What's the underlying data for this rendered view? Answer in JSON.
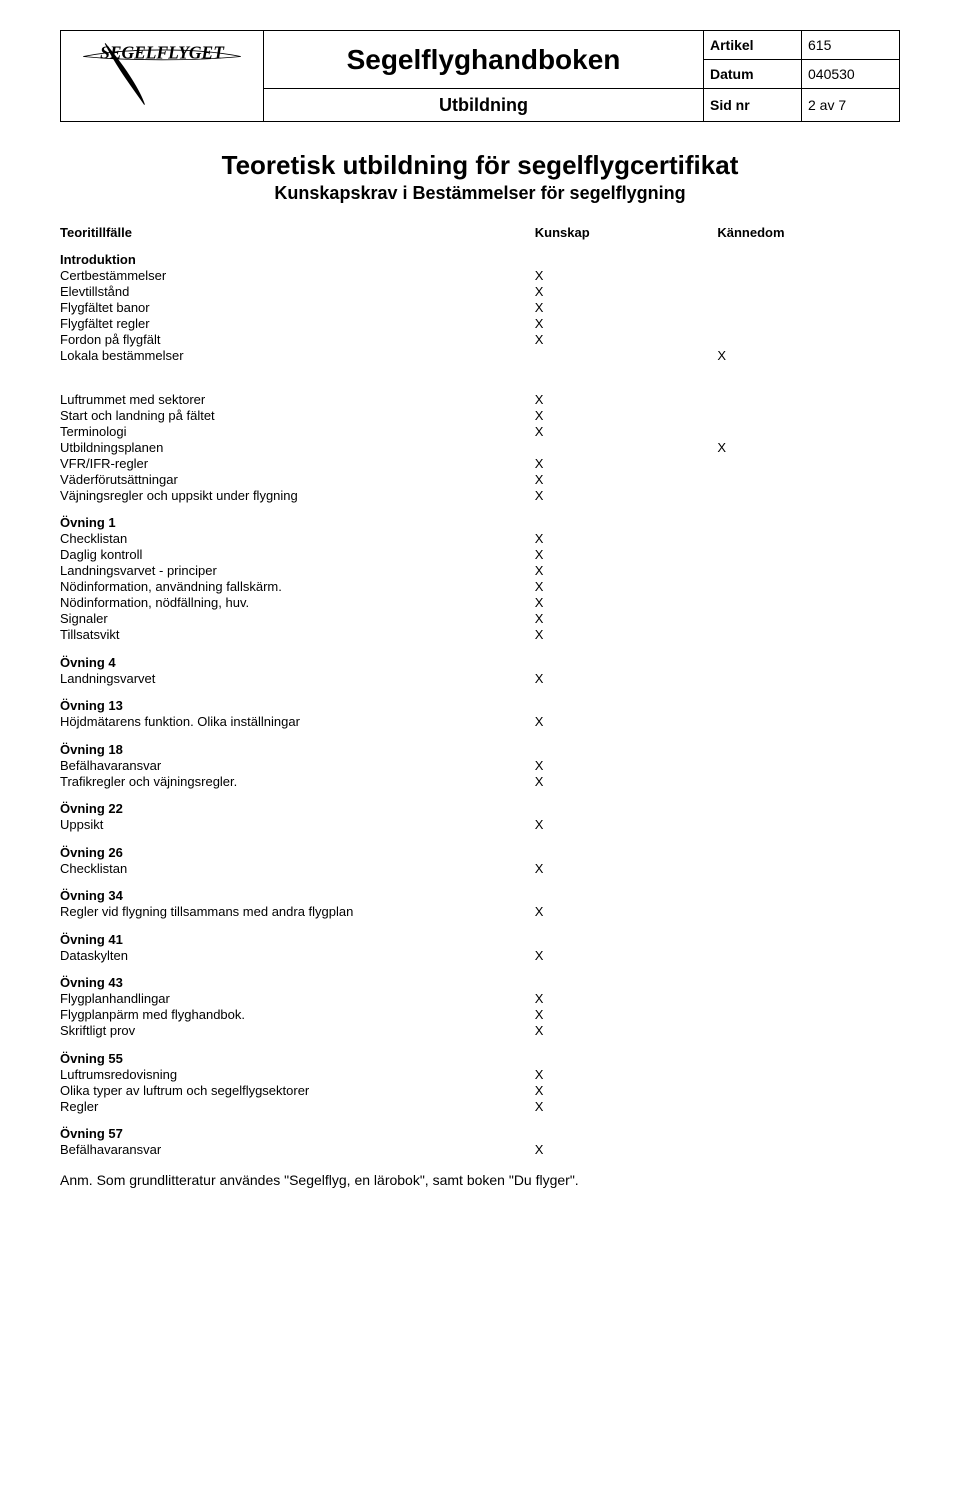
{
  "header": {
    "logo_text": "SEGELFLYGET",
    "main_title": "Segelflyghandboken",
    "sub_title": "Utbildning",
    "meta": {
      "artikel_label": "Artikel",
      "artikel_value": "615",
      "datum_label": "Datum",
      "datum_value": "040530",
      "sid_label": "Sid nr",
      "sid_value": "2 av 7"
    }
  },
  "page_title": "Teoretisk utbildning för segelflygcertifikat",
  "page_subtitle": "Kunskapskrav i Bestämmelser för segelflygning",
  "columns": {
    "c1": "Teoritillfälle",
    "c2": "Kunskap",
    "c3": "Kännedom"
  },
  "sections": [
    {
      "title": "Introduktion",
      "rows": [
        {
          "label": "Certbestämmelser",
          "kunskap": "X",
          "kannedom": ""
        },
        {
          "label": "Elevtillstånd",
          "kunskap": "X",
          "kannedom": ""
        },
        {
          "label": "Flygfältet banor",
          "kunskap": "X",
          "kannedom": ""
        },
        {
          "label": "Flygfältet regler",
          "kunskap": "X",
          "kannedom": ""
        },
        {
          "label": "Fordon på flygfält",
          "kunskap": "X",
          "kannedom": ""
        },
        {
          "label": "Lokala bestämmelser",
          "kunskap": "",
          "kannedom": "X"
        }
      ]
    },
    {
      "title": "",
      "rows": [
        {
          "label": "Luftrummet med sektorer",
          "kunskap": "X",
          "kannedom": ""
        },
        {
          "label": "Start och landning på fältet",
          "kunskap": "X",
          "kannedom": ""
        },
        {
          "label": "Terminologi",
          "kunskap": "X",
          "kannedom": ""
        },
        {
          "label": "Utbildningsplanen",
          "kunskap": "",
          "kannedom": "X"
        },
        {
          "label": "VFR/IFR-regler",
          "kunskap": "X",
          "kannedom": ""
        },
        {
          "label": "Väderförutsättningar",
          "kunskap": "X",
          "kannedom": ""
        },
        {
          "label": "Väjningsregler och uppsikt under flygning",
          "kunskap": "X",
          "kannedom": ""
        }
      ]
    },
    {
      "title": "Övning 1",
      "rows": [
        {
          "label": "Checklistan",
          "kunskap": "X",
          "kannedom": ""
        },
        {
          "label": "Daglig kontroll",
          "kunskap": "X",
          "kannedom": ""
        },
        {
          "label": "Landningsvarvet - principer",
          "kunskap": "X",
          "kannedom": ""
        },
        {
          "label": "Nödinformation, användning fallskärm.",
          "kunskap": "X",
          "kannedom": ""
        },
        {
          "label": "Nödinformation, nödfällning, huv.",
          "kunskap": "X",
          "kannedom": ""
        },
        {
          "label": "Signaler",
          "kunskap": "X",
          "kannedom": ""
        },
        {
          "label": "Tillsatsvikt",
          "kunskap": "X",
          "kannedom": ""
        }
      ]
    },
    {
      "title": "Övning 4",
      "rows": [
        {
          "label": "Landningsvarvet",
          "kunskap": "X",
          "kannedom": ""
        }
      ]
    },
    {
      "title": "Övning 13",
      "rows": [
        {
          "label": "Höjdmätarens funktion. Olika inställningar",
          "kunskap": "X",
          "kannedom": ""
        }
      ]
    },
    {
      "title": "Övning 18",
      "rows": [
        {
          "label": "Befälhavaransvar",
          "kunskap": "X",
          "kannedom": ""
        },
        {
          "label": "Trafikregler och väjningsregler.",
          "kunskap": "X",
          "kannedom": ""
        }
      ]
    },
    {
      "title": "Övning 22",
      "rows": [
        {
          "label": "Uppsikt",
          "kunskap": "X",
          "kannedom": ""
        }
      ]
    },
    {
      "title": "Övning 26",
      "rows": [
        {
          "label": "Checklistan",
          "kunskap": "X",
          "kannedom": ""
        }
      ]
    },
    {
      "title": "Övning 34",
      "rows": [
        {
          "label": "Regler vid flygning tillsammans med andra flygplan",
          "kunskap": "X",
          "kannedom": ""
        }
      ]
    },
    {
      "title": "Övning 41",
      "rows": [
        {
          "label": "Dataskylten",
          "kunskap": "X",
          "kannedom": ""
        }
      ]
    },
    {
      "title": "Övning 43",
      "rows": [
        {
          "label": "Flygplanhandlingar",
          "kunskap": "X",
          "kannedom": ""
        },
        {
          "label": "Flygplanpärm med flyghandbok.",
          "kunskap": "X",
          "kannedom": ""
        },
        {
          "label": "Skriftligt prov",
          "kunskap": "X",
          "kannedom": ""
        }
      ]
    },
    {
      "title": "Övning 55",
      "rows": [
        {
          "label": "Luftrumsredovisning",
          "kunskap": "X",
          "kannedom": ""
        },
        {
          "label": "Olika typer av luftrum och segelflygsektorer",
          "kunskap": "X",
          "kannedom": ""
        },
        {
          "label": "Regler",
          "kunskap": "X",
          "kannedom": ""
        }
      ]
    },
    {
      "title": "Övning 57",
      "rows": [
        {
          "label": "Befälhavaransvar",
          "kunskap": "X",
          "kannedom": ""
        }
      ]
    }
  ],
  "footnote": "Anm. Som grundlitteratur användes \"Segelflyg, en lärobok\",  samt boken \"Du flyger\"."
}
